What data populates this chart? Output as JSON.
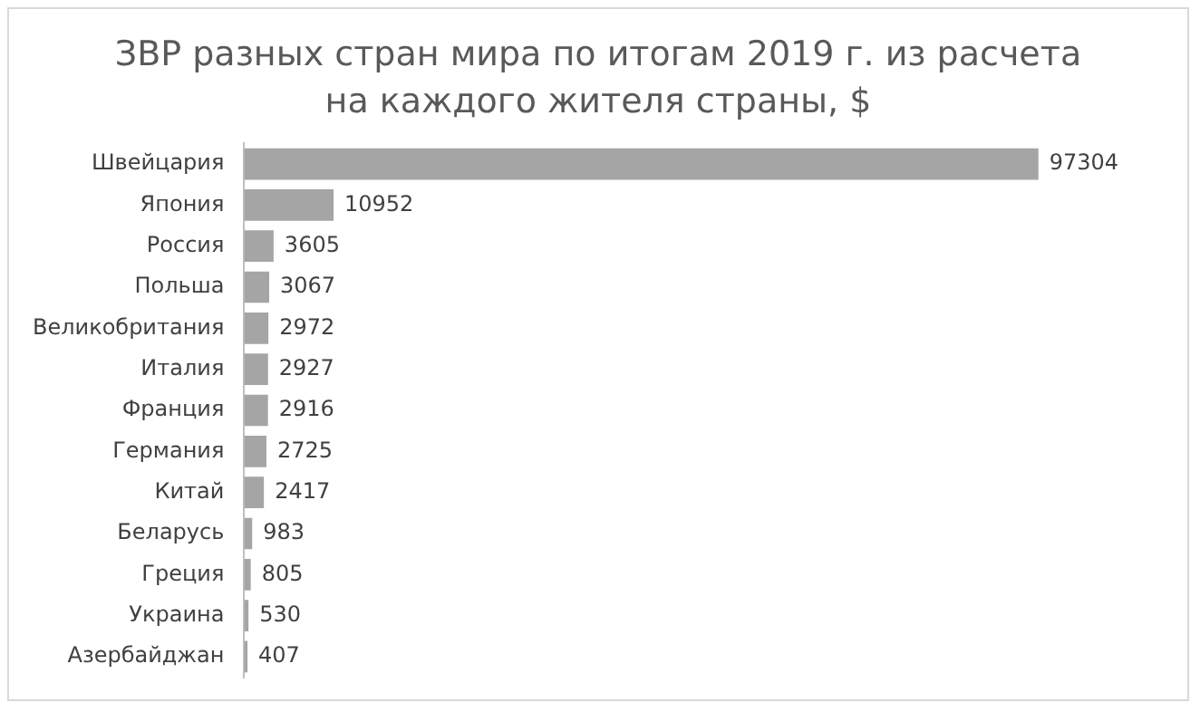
{
  "chart_data": {
    "type": "bar",
    "orientation": "horizontal",
    "title": "ЗВР разных стран мира по итогам 2019 г. из расчета на каждого жителя страны, $",
    "categories": [
      "Швейцария",
      "Япония",
      "Россия",
      "Польша",
      "Великобритания",
      "Италия",
      "Франция",
      "Германия",
      "Китай",
      "Беларусь",
      "Греция",
      "Украина",
      "Азербайджан"
    ],
    "values": [
      97304,
      10952,
      3605,
      3067,
      2972,
      2927,
      2916,
      2725,
      2417,
      983,
      805,
      530,
      407
    ],
    "color": "#a5a5a5",
    "data_labels": true
  }
}
